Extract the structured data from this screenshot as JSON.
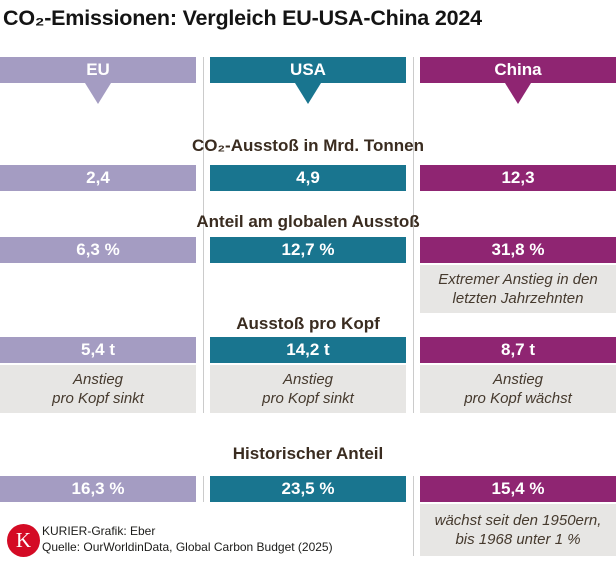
{
  "title": "CO₂-Emissionen: Vergleich EU-USA-China 2024",
  "colors": {
    "eu": "#a49cc2",
    "usa": "#19758f",
    "china": "#8f2572",
    "note_bg": "#e7e6e4",
    "logo_red": "#d40b25"
  },
  "header": {
    "columns": [
      {
        "label": "EU"
      },
      {
        "label": "USA"
      },
      {
        "label": "China"
      }
    ]
  },
  "sections": [
    {
      "title": "CO₂-Ausstoß in Mrd. Tonnen",
      "values": [
        "2,4",
        "4,9",
        "12,3"
      ]
    },
    {
      "title": "Anteil am globalen Ausstoß",
      "values": [
        "6,3 %",
        "12,7 %",
        "31,8 %"
      ],
      "china_note": "Extremer Anstieg in den\nletzten Jahrzehnten"
    },
    {
      "title": "Ausstoß pro Kopf",
      "values": [
        "5,4 t",
        "14,2 t",
        "8,7 t"
      ],
      "notes": [
        "Anstieg\npro Kopf sinkt",
        "Anstieg\npro Kopf sinkt",
        "Anstieg\npro Kopf wächst"
      ]
    },
    {
      "title": "Historischer Anteil",
      "values": [
        "16,3 %",
        "23,5 %",
        "15,4 %"
      ],
      "china_note": "wächst seit den 1950ern,\nbis 1968 unter 1 %"
    }
  ],
  "footer": {
    "logo_letter": "K",
    "credit": "KURIER-Grafik: Eber",
    "source": "Quelle: OurWorldinData, Global Carbon Budget (2025)"
  },
  "chart_data": {
    "type": "table",
    "title": "CO₂-Emissionen: Vergleich EU-USA-China 2024",
    "categories": [
      "EU",
      "USA",
      "China"
    ],
    "series": [
      {
        "name": "CO₂-Ausstoß in Mrd. Tonnen",
        "values": [
          2.4,
          4.9,
          12.3
        ]
      },
      {
        "name": "Anteil am globalen Ausstoß (%)",
        "values": [
          6.3,
          12.7,
          31.8
        ]
      },
      {
        "name": "Ausstoß pro Kopf (t)",
        "values": [
          5.4,
          14.2,
          8.7
        ]
      },
      {
        "name": "Historischer Anteil (%)",
        "values": [
          16.3,
          23.5,
          15.4
        ]
      }
    ],
    "annotations": [
      {
        "category": "China",
        "series": "Anteil am globalen Ausstoß (%)",
        "text": "Extremer Anstieg in den letzten Jahrzehnten"
      },
      {
        "category": "EU",
        "series": "Ausstoß pro Kopf (t)",
        "text": "Anstieg pro Kopf sinkt"
      },
      {
        "category": "USA",
        "series": "Ausstoß pro Kopf (t)",
        "text": "Anstieg pro Kopf sinkt"
      },
      {
        "category": "China",
        "series": "Ausstoß pro Kopf (t)",
        "text": "Anstieg pro Kopf wächst"
      },
      {
        "category": "China",
        "series": "Historischer Anteil (%)",
        "text": "wächst seit den 1950ern, bis 1968 unter 1 %"
      }
    ],
    "legend_position": "top",
    "grid": false,
    "colors": {
      "EU": "#a49cc2",
      "USA": "#19758f",
      "China": "#8f2572"
    }
  }
}
